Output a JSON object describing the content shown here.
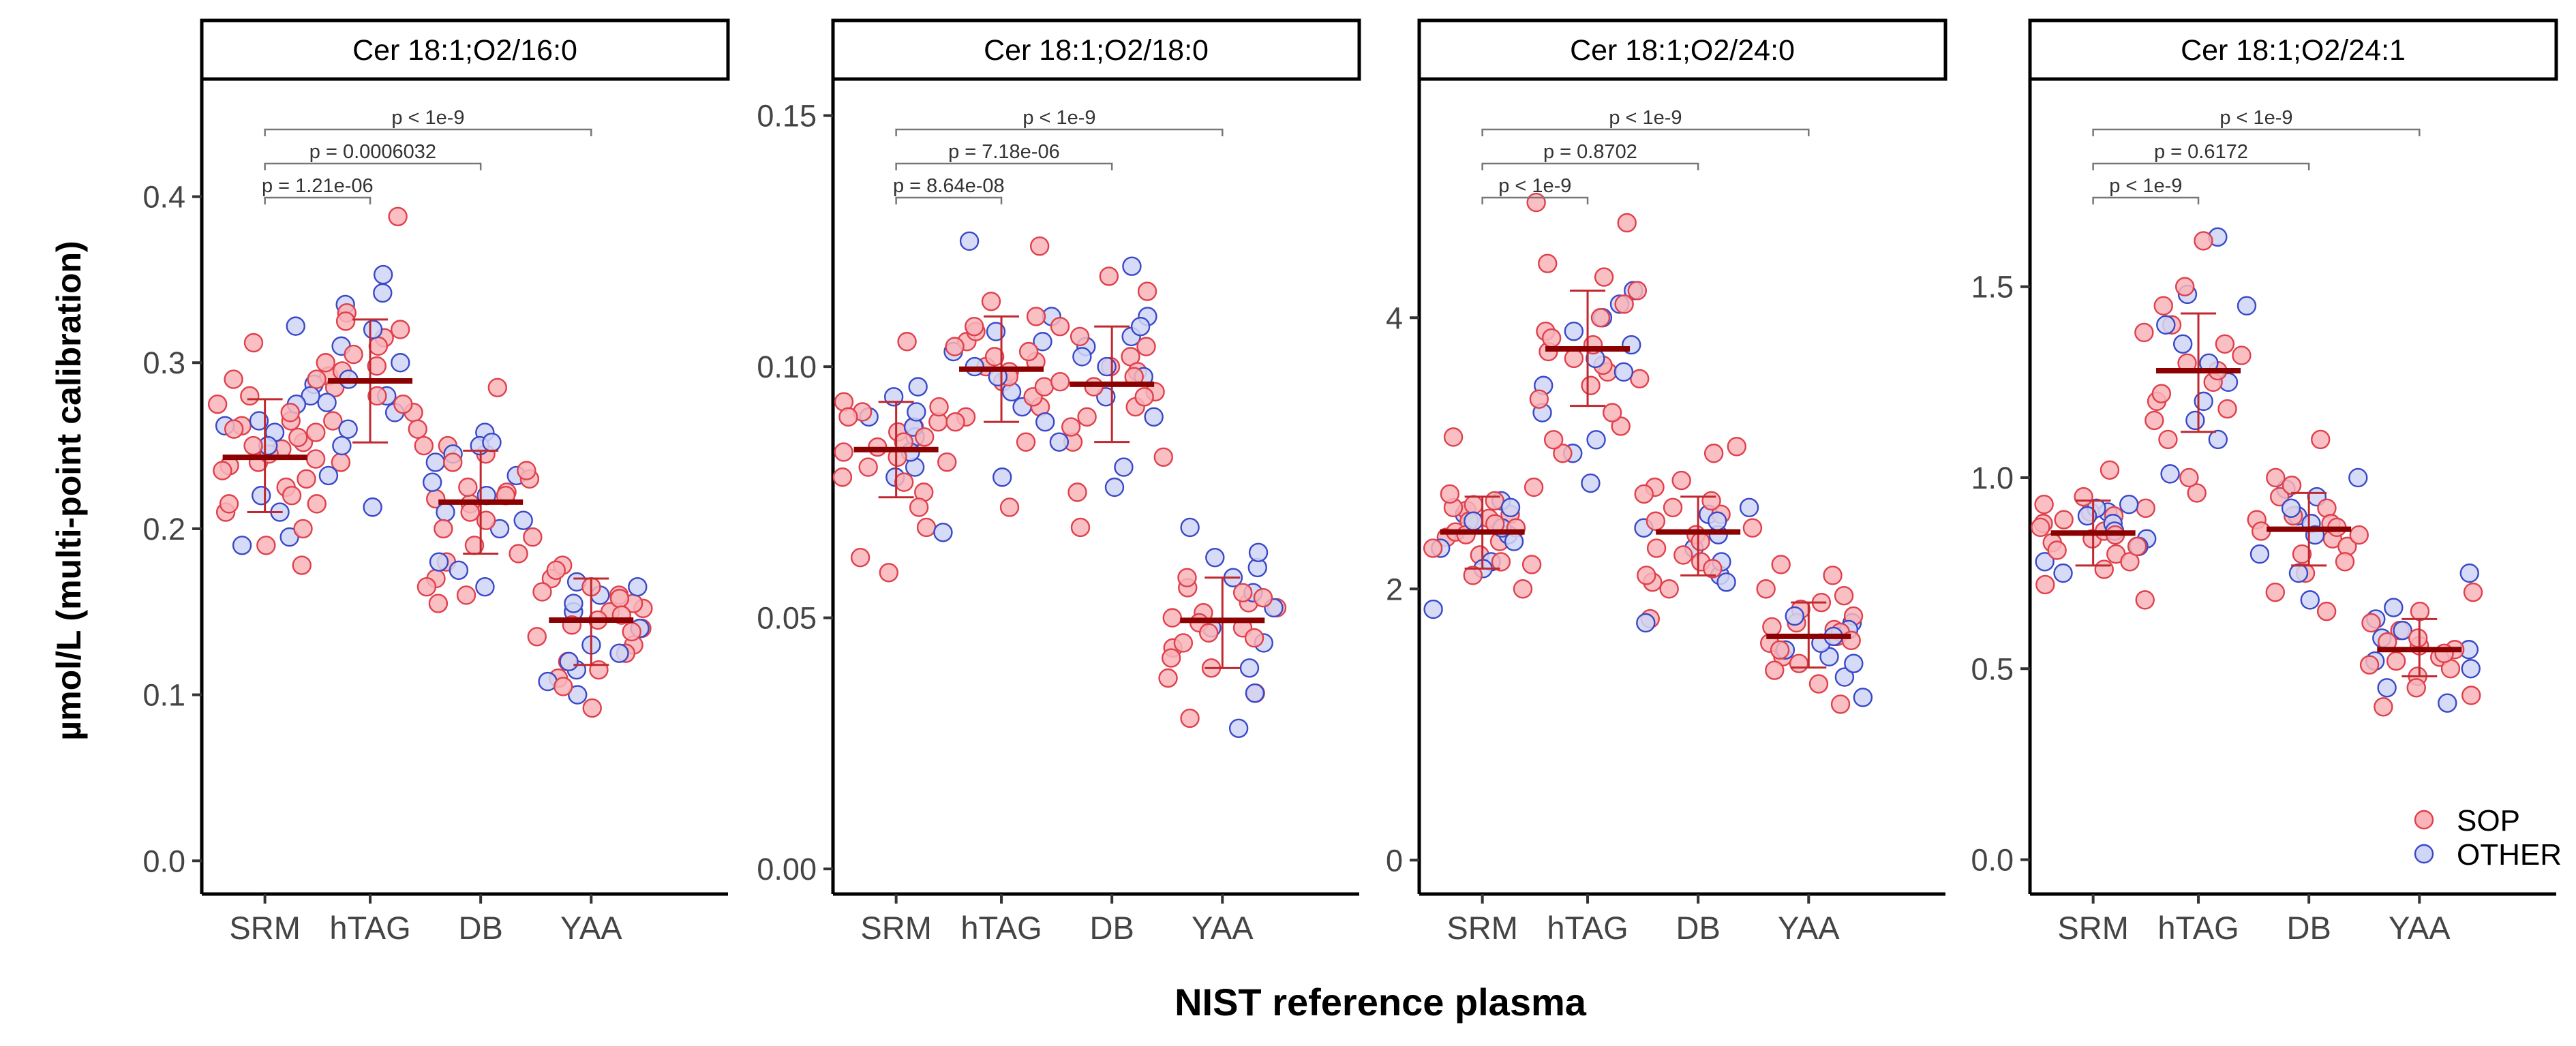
{
  "ylabel": "µmol/L (multi-point calibration)",
  "xlabel": "NIST reference plasma",
  "categories": [
    "SRM",
    "hTAG",
    "DB",
    "YAA"
  ],
  "legend": {
    "placement": "bottom-right",
    "items": [
      {
        "label": "SOP",
        "fill": "#f8b4b8",
        "stroke": "#e0404c"
      },
      {
        "label": "OTHER",
        "fill": "#cfd6f6",
        "stroke": "#3a48c8"
      }
    ]
  },
  "colors": {
    "sop_fill": "#f8b4b8",
    "sop_stroke": "#e0404c",
    "other_fill": "#cfd6f6",
    "other_stroke": "#3a48c8",
    "mean_line": "#8b0000",
    "error_bar": "#c0282e",
    "bracket": "#777777",
    "axis": "#000000"
  },
  "chart_data": [
    {
      "type": "scatter",
      "title": "Cer 18:1;O2/16:0",
      "ylim": [
        -0.02,
        0.47
      ],
      "yticks": [
        0.0,
        0.1,
        0.2,
        0.3,
        0.4
      ],
      "yticklabels": [
        "0.0",
        "0.1",
        "0.2",
        "0.3",
        "0.4"
      ],
      "grid": false,
      "groups": [
        {
          "category": "SRM",
          "mean": 0.243,
          "lower": 0.21,
          "upper": 0.278,
          "sop": [
            0.178,
            0.19,
            0.2,
            0.21,
            0.215,
            0.22,
            0.225,
            0.23,
            0.235,
            0.238,
            0.24,
            0.242,
            0.245,
            0.248,
            0.25,
            0.252,
            0.255,
            0.258,
            0.26,
            0.262,
            0.265,
            0.27,
            0.275,
            0.28,
            0.29,
            0.312
          ],
          "other": [
            0.19,
            0.195,
            0.21,
            0.22,
            0.25,
            0.258,
            0.262,
            0.265,
            0.275,
            0.28,
            0.287,
            0.322
          ]
        },
        {
          "category": "hTAG",
          "mean": 0.289,
          "lower": 0.252,
          "upper": 0.326,
          "sop": [
            0.215,
            0.24,
            0.25,
            0.26,
            0.265,
            0.27,
            0.275,
            0.28,
            0.285,
            0.29,
            0.292,
            0.295,
            0.298,
            0.3,
            0.305,
            0.31,
            0.315,
            0.32,
            0.325,
            0.33,
            0.388
          ],
          "other": [
            0.213,
            0.232,
            0.25,
            0.26,
            0.27,
            0.276,
            0.28,
            0.29,
            0.3,
            0.31,
            0.32,
            0.335,
            0.342,
            0.353
          ]
        },
        {
          "category": "DB",
          "mean": 0.216,
          "lower": 0.185,
          "upper": 0.247,
          "sop": [
            0.155,
            0.16,
            0.165,
            0.17,
            0.18,
            0.185,
            0.19,
            0.195,
            0.2,
            0.205,
            0.21,
            0.215,
            0.218,
            0.22,
            0.222,
            0.225,
            0.23,
            0.235,
            0.24,
            0.245,
            0.25,
            0.285
          ],
          "other": [
            0.165,
            0.175,
            0.18,
            0.2,
            0.205,
            0.21,
            0.22,
            0.228,
            0.232,
            0.24,
            0.245,
            0.25,
            0.252,
            0.258
          ]
        },
        {
          "category": "YAA",
          "mean": 0.145,
          "lower": 0.118,
          "upper": 0.17,
          "sop": [
            0.092,
            0.105,
            0.11,
            0.115,
            0.12,
            0.125,
            0.13,
            0.135,
            0.138,
            0.14,
            0.142,
            0.145,
            0.148,
            0.15,
            0.152,
            0.155,
            0.158,
            0.16,
            0.162,
            0.165,
            0.17,
            0.175,
            0.178
          ],
          "other": [
            0.1,
            0.108,
            0.115,
            0.12,
            0.125,
            0.13,
            0.14,
            0.15,
            0.155,
            0.16,
            0.165,
            0.168
          ]
        }
      ],
      "comparisons": [
        {
          "from": "SRM",
          "to": "hTAG",
          "label": "p = 1.21e-06"
        },
        {
          "from": "SRM",
          "to": "DB",
          "label": "p = 0.0006032"
        },
        {
          "from": "SRM",
          "to": "YAA",
          "label": "p < 1e-9"
        }
      ]
    },
    {
      "type": "scatter",
      "title": "Cer 18:1;O2/18:0",
      "ylim": [
        -0.005,
        0.157
      ],
      "yticks": [
        0.0,
        0.05,
        0.1,
        0.15
      ],
      "yticklabels": [
        "0.00",
        "0.05",
        "0.10",
        "0.15"
      ],
      "grid": false,
      "groups": [
        {
          "category": "SRM",
          "mean": 0.0835,
          "lower": 0.074,
          "upper": 0.093,
          "sop": [
            0.059,
            0.062,
            0.068,
            0.072,
            0.075,
            0.077,
            0.078,
            0.08,
            0.081,
            0.082,
            0.083,
            0.084,
            0.085,
            0.086,
            0.087,
            0.088,
            0.089,
            0.09,
            0.091,
            0.092,
            0.093,
            0.105
          ],
          "other": [
            0.067,
            0.078,
            0.08,
            0.083,
            0.086,
            0.088,
            0.09,
            0.091,
            0.094,
            0.096
          ]
        },
        {
          "category": "hTAG",
          "mean": 0.0995,
          "lower": 0.089,
          "upper": 0.11,
          "sop": [
            0.072,
            0.085,
            0.089,
            0.09,
            0.092,
            0.094,
            0.096,
            0.097,
            0.098,
            0.099,
            0.1,
            0.101,
            0.102,
            0.103,
            0.104,
            0.105,
            0.107,
            0.108,
            0.11,
            0.113,
            0.124
          ],
          "other": [
            0.078,
            0.089,
            0.092,
            0.095,
            0.098,
            0.1,
            0.103,
            0.105,
            0.107,
            0.11,
            0.125
          ]
        },
        {
          "category": "DB",
          "mean": 0.0965,
          "lower": 0.085,
          "upper": 0.108,
          "sop": [
            0.068,
            0.075,
            0.082,
            0.085,
            0.088,
            0.09,
            0.092,
            0.094,
            0.095,
            0.096,
            0.097,
            0.098,
            0.099,
            0.1,
            0.102,
            0.104,
            0.106,
            0.108,
            0.115,
            0.118
          ],
          "other": [
            0.076,
            0.08,
            0.085,
            0.09,
            0.094,
            0.098,
            0.1,
            0.102,
            0.104,
            0.106,
            0.108,
            0.11,
            0.12
          ]
        },
        {
          "category": "YAA",
          "mean": 0.0495,
          "lower": 0.04,
          "upper": 0.058,
          "sop": [
            0.03,
            0.035,
            0.038,
            0.04,
            0.042,
            0.044,
            0.045,
            0.046,
            0.047,
            0.048,
            0.049,
            0.05,
            0.051,
            0.052,
            0.053,
            0.054,
            0.055,
            0.056,
            0.058
          ],
          "other": [
            0.028,
            0.035,
            0.04,
            0.045,
            0.048,
            0.052,
            0.055,
            0.058,
            0.06,
            0.062,
            0.063,
            0.068
          ]
        }
      ],
      "comparisons": [
        {
          "from": "SRM",
          "to": "hTAG",
          "label": "p = 8.64e-08"
        },
        {
          "from": "SRM",
          "to": "DB",
          "label": "p = 7.18e-06"
        },
        {
          "from": "SRM",
          "to": "YAA",
          "label": "p < 1e-9"
        }
      ]
    },
    {
      "type": "scatter",
      "title": "Cer 18:1;O2/24:0",
      "ylim": [
        -0.25,
        5.75
      ],
      "yticks": [
        0,
        2,
        4
      ],
      "yticklabels": [
        "0",
        "2",
        "4"
      ],
      "grid": false,
      "groups": [
        {
          "category": "SRM",
          "mean": 2.42,
          "lower": 2.15,
          "upper": 2.68,
          "sop": [
            2.0,
            2.1,
            2.18,
            2.2,
            2.25,
            2.3,
            2.35,
            2.38,
            2.4,
            2.42,
            2.45,
            2.48,
            2.5,
            2.52,
            2.55,
            2.58,
            2.6,
            2.62,
            2.65,
            2.7,
            2.75,
            3.12
          ],
          "other": [
            1.85,
            2.15,
            2.2,
            2.3,
            2.35,
            2.4,
            2.45,
            2.5,
            2.55,
            2.6,
            2.65
          ]
        },
        {
          "category": "hTAG",
          "mean": 3.77,
          "lower": 3.35,
          "upper": 4.2,
          "sop": [
            3.0,
            3.1,
            3.2,
            3.3,
            3.4,
            3.5,
            3.55,
            3.6,
            3.65,
            3.7,
            3.75,
            3.8,
            3.85,
            3.9,
            4.0,
            4.1,
            4.2,
            4.3,
            4.4,
            4.7,
            4.85
          ],
          "other": [
            2.78,
            3.0,
            3.1,
            3.3,
            3.5,
            3.6,
            3.7,
            3.8,
            3.9,
            4.0,
            4.1,
            4.2
          ]
        },
        {
          "category": "DB",
          "mean": 2.42,
          "lower": 2.1,
          "upper": 2.68,
          "sop": [
            1.78,
            2.0,
            2.05,
            2.1,
            2.15,
            2.2,
            2.25,
            2.3,
            2.35,
            2.4,
            2.45,
            2.5,
            2.55,
            2.6,
            2.65,
            2.7,
            2.75,
            2.8,
            3.0,
            3.05
          ],
          "other": [
            1.75,
            2.05,
            2.1,
            2.2,
            2.3,
            2.4,
            2.45,
            2.5,
            2.55,
            2.6
          ]
        },
        {
          "category": "YAA",
          "mean": 1.65,
          "lower": 1.42,
          "upper": 1.9,
          "sop": [
            1.15,
            1.3,
            1.4,
            1.45,
            1.5,
            1.55,
            1.6,
            1.62,
            1.65,
            1.68,
            1.7,
            1.72,
            1.75,
            1.8,
            1.85,
            1.9,
            1.95,
            2.0,
            2.1,
            2.18
          ],
          "other": [
            1.2,
            1.35,
            1.45,
            1.5,
            1.55,
            1.6,
            1.65,
            1.7,
            1.75,
            1.8
          ]
        }
      ],
      "comparisons": [
        {
          "from": "SRM",
          "to": "hTAG",
          "label": "p < 1e-9"
        },
        {
          "from": "SRM",
          "to": "DB",
          "label": "p = 0.8702"
        },
        {
          "from": "SRM",
          "to": "YAA",
          "label": "p < 1e-9"
        }
      ]
    },
    {
      "type": "scatter",
      "title": "Cer 18:1;O2/24:1",
      "ylim": [
        -0.09,
        2.04
      ],
      "yticks": [
        0.0,
        0.5,
        1.0,
        1.5
      ],
      "yticklabels": [
        "0.0",
        "0.5",
        "1.0",
        "1.5"
      ],
      "grid": false,
      "groups": [
        {
          "category": "SRM",
          "mean": 0.855,
          "lower": 0.77,
          "upper": 0.94,
          "sop": [
            0.68,
            0.72,
            0.76,
            0.78,
            0.8,
            0.81,
            0.82,
            0.83,
            0.84,
            0.85,
            0.86,
            0.87,
            0.88,
            0.89,
            0.9,
            0.91,
            0.92,
            0.93,
            0.95,
            1.02
          ],
          "other": [
            0.75,
            0.78,
            0.82,
            0.84,
            0.86,
            0.88,
            0.9,
            0.91,
            0.92,
            0.93
          ]
        },
        {
          "category": "hTAG",
          "mean": 1.28,
          "lower": 1.12,
          "upper": 1.43,
          "sop": [
            0.96,
            1.0,
            1.1,
            1.15,
            1.18,
            1.2,
            1.22,
            1.25,
            1.28,
            1.3,
            1.32,
            1.35,
            1.38,
            1.4,
            1.45,
            1.5,
            1.62
          ],
          "other": [
            1.01,
            1.1,
            1.15,
            1.2,
            1.25,
            1.3,
            1.35,
            1.4,
            1.45,
            1.48,
            1.63
          ]
        },
        {
          "category": "DB",
          "mean": 0.865,
          "lower": 0.77,
          "upper": 0.96,
          "sop": [
            0.65,
            0.7,
            0.75,
            0.78,
            0.8,
            0.82,
            0.84,
            0.85,
            0.86,
            0.87,
            0.88,
            0.89,
            0.9,
            0.92,
            0.95,
            0.98,
            1.0,
            1.1
          ],
          "other": [
            0.68,
            0.75,
            0.8,
            0.85,
            0.88,
            0.9,
            0.92,
            0.95,
            0.97,
            1.0
          ]
        },
        {
          "category": "YAA",
          "mean": 0.55,
          "lower": 0.48,
          "upper": 0.63,
          "sop": [
            0.4,
            0.43,
            0.45,
            0.48,
            0.5,
            0.51,
            0.52,
            0.53,
            0.54,
            0.55,
            0.56,
            0.57,
            0.58,
            0.6,
            0.62,
            0.65,
            0.7
          ],
          "other": [
            0.41,
            0.45,
            0.5,
            0.52,
            0.55,
            0.58,
            0.6,
            0.63,
            0.66,
            0.75
          ]
        }
      ],
      "comparisons": [
        {
          "from": "SRM",
          "to": "hTAG",
          "label": "p < 1e-9"
        },
        {
          "from": "SRM",
          "to": "DB",
          "label": "p = 0.6172"
        },
        {
          "from": "SRM",
          "to": "YAA",
          "label": "p < 1e-9"
        }
      ]
    }
  ]
}
